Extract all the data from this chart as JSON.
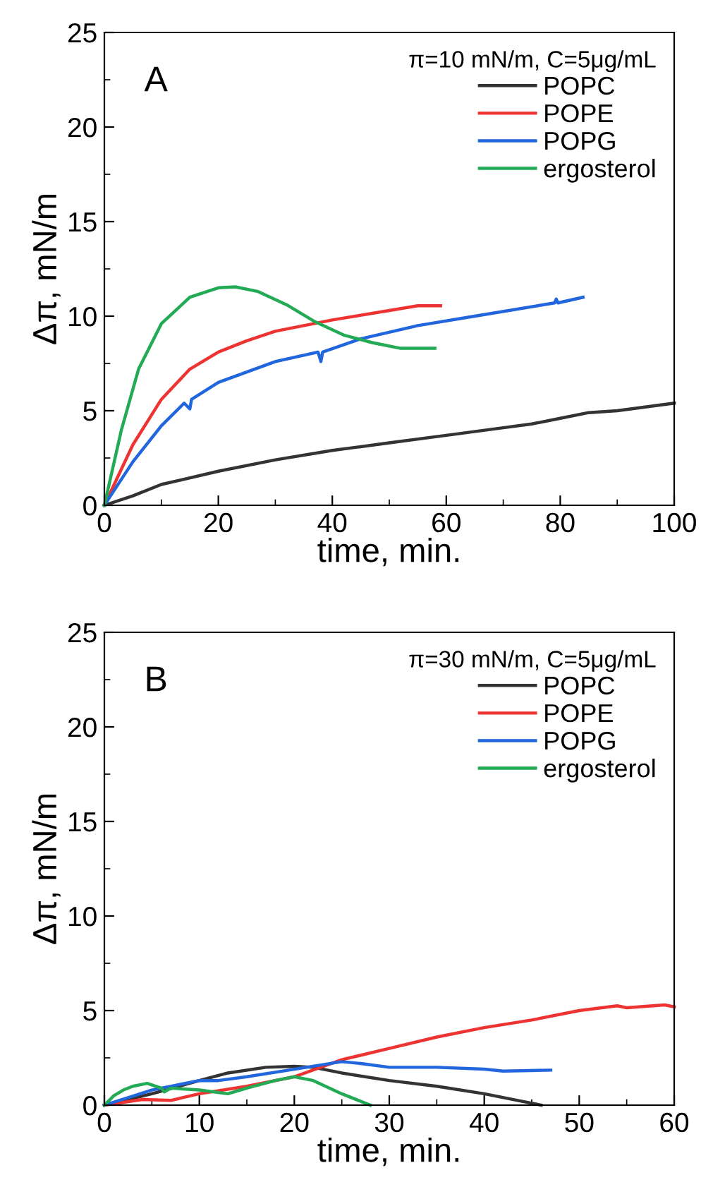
{
  "chart_data": [
    {
      "type": "line",
      "title": "A",
      "xlabel": "time, min.",
      "ylabel": "Δπ, mN/m",
      "legend_title": "π=10 mN/m, C=5μg/mL",
      "legend": "top right",
      "xlim": [
        0,
        100
      ],
      "xticks": [
        0,
        20,
        40,
        60,
        80,
        100
      ],
      "ylim": [
        0,
        25
      ],
      "yticks": [
        0,
        5,
        10,
        15,
        20,
        25
      ],
      "grid": false,
      "marker": "none",
      "line_style": "solid",
      "series": [
        {
          "name": "POPC",
          "color": "#333333",
          "x": [
            0,
            5,
            10,
            20,
            30,
            40,
            50,
            60,
            70,
            75,
            80,
            85,
            90,
            100
          ],
          "values": [
            0,
            0.5,
            1.1,
            1.8,
            2.4,
            2.9,
            3.3,
            3.7,
            4.1,
            4.3,
            4.6,
            4.9,
            5.0,
            5.4
          ]
        },
        {
          "name": "POPE",
          "color": "#ee3333",
          "x": [
            0,
            5,
            10,
            15,
            20,
            25,
            30,
            40,
            50,
            55,
            59
          ],
          "values": [
            0,
            3.2,
            5.6,
            7.2,
            8.1,
            8.7,
            9.2,
            9.8,
            10.3,
            10.55,
            10.55
          ]
        },
        {
          "name": "POPG",
          "color": "#2266dd",
          "x": [
            0,
            5,
            10,
            14,
            15,
            15.3,
            20,
            30,
            37.5,
            38,
            38.3,
            45,
            55,
            65,
            79,
            79.3,
            79.6,
            84
          ],
          "values": [
            0,
            2.3,
            4.2,
            5.4,
            5.1,
            5.6,
            6.5,
            7.6,
            8.1,
            7.6,
            8.1,
            8.8,
            9.5,
            10.0,
            10.7,
            10.9,
            10.7,
            11.0
          ]
        },
        {
          "name": "ergosterol",
          "color": "#22aa55",
          "x": [
            0,
            3,
            6,
            10,
            15,
            20,
            23,
            27,
            32,
            37,
            42,
            47,
            52,
            55,
            58
          ],
          "values": [
            0,
            4,
            7.2,
            9.6,
            11.0,
            11.5,
            11.55,
            11.3,
            10.6,
            9.7,
            9.0,
            8.6,
            8.3,
            8.3,
            8.3
          ]
        }
      ]
    },
    {
      "type": "line",
      "title": "B",
      "xlabel": "time, min.",
      "ylabel": "Δπ, mN/m",
      "legend_title": "π=30 mN/m, C=5μg/mL",
      "legend": "top right",
      "xlim": [
        0,
        60
      ],
      "xticks": [
        0,
        10,
        20,
        30,
        40,
        50,
        60
      ],
      "ylim": [
        0,
        25
      ],
      "yticks": [
        0,
        5,
        10,
        15,
        20,
        25
      ],
      "grid": false,
      "marker": "none",
      "line_style": "solid",
      "series": [
        {
          "name": "POPC",
          "color": "#333333",
          "x": [
            0,
            5,
            10,
            13,
            17,
            20,
            22,
            25,
            30,
            35,
            40,
            44,
            46
          ],
          "values": [
            0,
            0.6,
            1.3,
            1.7,
            2.0,
            2.05,
            2.0,
            1.7,
            1.3,
            1.0,
            0.6,
            0.2,
            0
          ]
        },
        {
          "name": "POPE",
          "color": "#ee3333",
          "x": [
            0,
            4,
            7,
            10,
            15,
            20,
            25,
            30,
            35,
            40,
            45,
            50,
            54,
            55,
            59,
            60
          ],
          "values": [
            0,
            0.3,
            0.25,
            0.6,
            1.0,
            1.5,
            2.4,
            3.0,
            3.6,
            4.1,
            4.5,
            5.0,
            5.25,
            5.15,
            5.3,
            5.2
          ]
        },
        {
          "name": "POPG",
          "color": "#2266dd",
          "x": [
            0,
            5,
            10,
            12,
            15,
            20,
            25,
            27,
            30,
            35,
            40,
            42,
            47
          ],
          "values": [
            0,
            0.8,
            1.3,
            1.3,
            1.5,
            1.9,
            2.3,
            2.2,
            2.0,
            2.0,
            1.9,
            1.8,
            1.85
          ]
        },
        {
          "name": "ergosterol",
          "color": "#22aa55",
          "x": [
            0,
            1,
            2,
            3,
            4.5,
            6,
            6.3,
            7,
            10,
            13,
            15,
            18,
            20,
            22,
            25,
            28
          ],
          "values": [
            0,
            0.5,
            0.8,
            1.0,
            1.15,
            0.9,
            0.7,
            0.9,
            0.8,
            0.6,
            0.9,
            1.3,
            1.5,
            1.3,
            0.6,
            0
          ]
        }
      ]
    }
  ]
}
